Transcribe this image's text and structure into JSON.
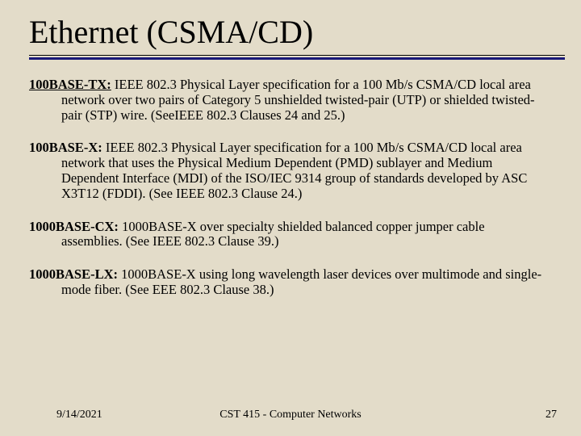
{
  "title": "Ethernet (CSMA/CD)",
  "colors": {
    "background": "#e3dcc9",
    "accent_rule": "#181878",
    "text": "#000000"
  },
  "typography": {
    "title_fontsize_pt": 30,
    "body_fontsize_pt": 12.5,
    "footer_fontsize_pt": 10.5,
    "font_family": "Times New Roman"
  },
  "entries": [
    {
      "term": "100BASE-TX:",
      "linked": true,
      "body": " IEEE 802.3 Physical Layer specification for a 100 Mb/s CSMA/CD local area network over two pairs of Category 5 unshielded twisted-pair (UTP) or shielded twisted-pair (STP) wire. (SeeIEEE 802.3 Clauses 24 and 25.)"
    },
    {
      "term": "100BASE-X:",
      "linked": false,
      "body": " IEEE 802.3 Physical Layer specification for a 100 Mb/s CSMA/CD local area network that uses the Physical Medium Dependent (PMD) sublayer and Medium Dependent Interface (MDI) of the ISO/IEC 9314 group of standards developed by ASC X3T12 (FDDI). (See IEEE 802.3 Clause 24.)"
    },
    {
      "term": "1000BASE-CX:",
      "linked": false,
      "body": " 1000BASE-X over specialty shielded balanced copper jumper cable assemblies. (See IEEE 802.3 Clause 39.)"
    },
    {
      "term": "1000BASE-LX:",
      "linked": false,
      "body": " 1000BASE-X using long wavelength laser devices over multimode and single-mode fiber. (See EEE 802.3 Clause 38.)"
    }
  ],
  "footer": {
    "date": "9/14/2021",
    "course": "CST 415 - Computer Networks",
    "page": "27"
  }
}
